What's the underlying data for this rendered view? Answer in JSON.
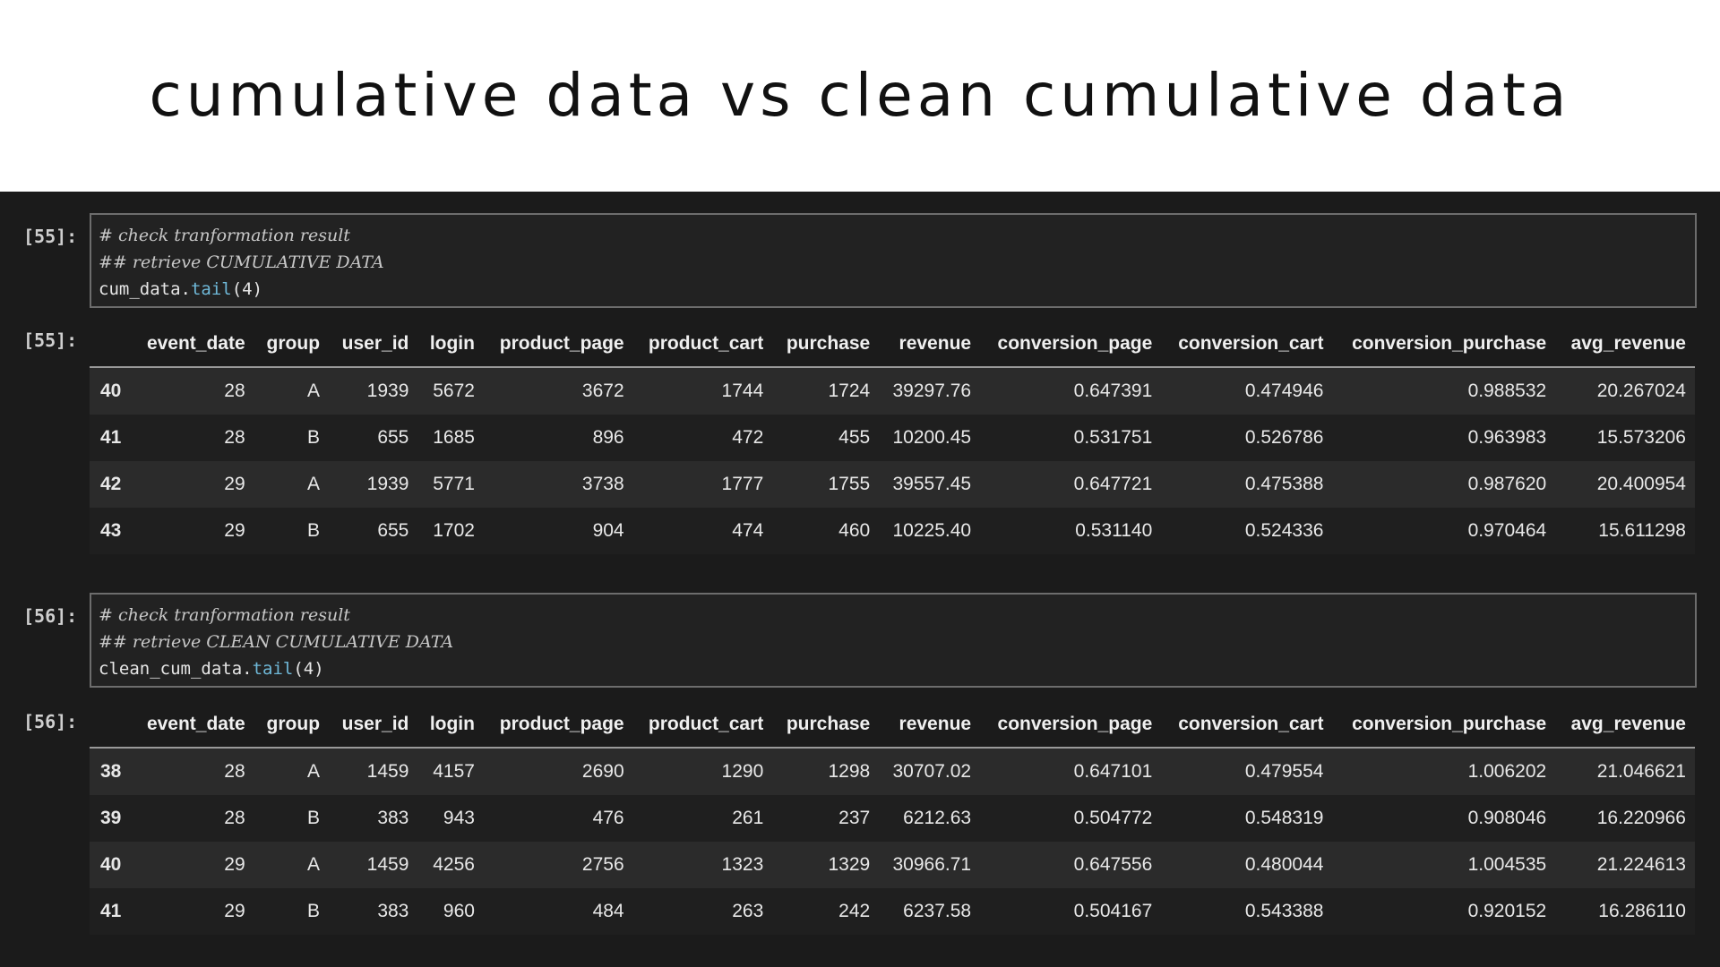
{
  "title": "cumulative data vs clean cumulative data",
  "columns": [
    "",
    "event_date",
    "group",
    "user_id",
    "login",
    "product_page",
    "product_cart",
    "purchase",
    "revenue",
    "conversion_page",
    "conversion_cart",
    "conversion_purchase",
    "avg_revenue"
  ],
  "cells": [
    {
      "in_prompt": "[55]:",
      "out_prompt": "[55]:",
      "code": {
        "comment1": "# check tranformation result",
        "comment2": "## retrieve CUMULATIVE DATA",
        "var": "cum_data.",
        "fn": "tail",
        "args": "(4)"
      },
      "rows": [
        [
          "40",
          "28",
          "A",
          "1939",
          "5672",
          "3672",
          "1744",
          "1724",
          "39297.76",
          "0.647391",
          "0.474946",
          "0.988532",
          "20.267024"
        ],
        [
          "41",
          "28",
          "B",
          "655",
          "1685",
          "896",
          "472",
          "455",
          "10200.45",
          "0.531751",
          "0.526786",
          "0.963983",
          "15.573206"
        ],
        [
          "42",
          "29",
          "A",
          "1939",
          "5771",
          "3738",
          "1777",
          "1755",
          "39557.45",
          "0.647721",
          "0.475388",
          "0.987620",
          "20.400954"
        ],
        [
          "43",
          "29",
          "B",
          "655",
          "1702",
          "904",
          "474",
          "460",
          "10225.40",
          "0.531140",
          "0.524336",
          "0.970464",
          "15.611298"
        ]
      ]
    },
    {
      "in_prompt": "[56]:",
      "out_prompt": "[56]:",
      "code": {
        "comment1": "# check tranformation result",
        "comment2": "## retrieve CLEAN CUMULATIVE DATA",
        "var": "clean_cum_data.",
        "fn": "tail",
        "args": "(4)"
      },
      "rows": [
        [
          "38",
          "28",
          "A",
          "1459",
          "4157",
          "2690",
          "1290",
          "1298",
          "30707.02",
          "0.647101",
          "0.479554",
          "1.006202",
          "21.046621"
        ],
        [
          "39",
          "28",
          "B",
          "383",
          "943",
          "476",
          "261",
          "237",
          "6212.63",
          "0.504772",
          "0.548319",
          "0.908046",
          "16.220966"
        ],
        [
          "40",
          "29",
          "A",
          "1459",
          "4256",
          "2756",
          "1323",
          "1329",
          "30966.71",
          "0.647556",
          "0.480044",
          "1.004535",
          "21.224613"
        ],
        [
          "41",
          "29",
          "B",
          "383",
          "960",
          "484",
          "263",
          "242",
          "6237.58",
          "0.504167",
          "0.543388",
          "0.920152",
          "16.286110"
        ]
      ]
    }
  ]
}
